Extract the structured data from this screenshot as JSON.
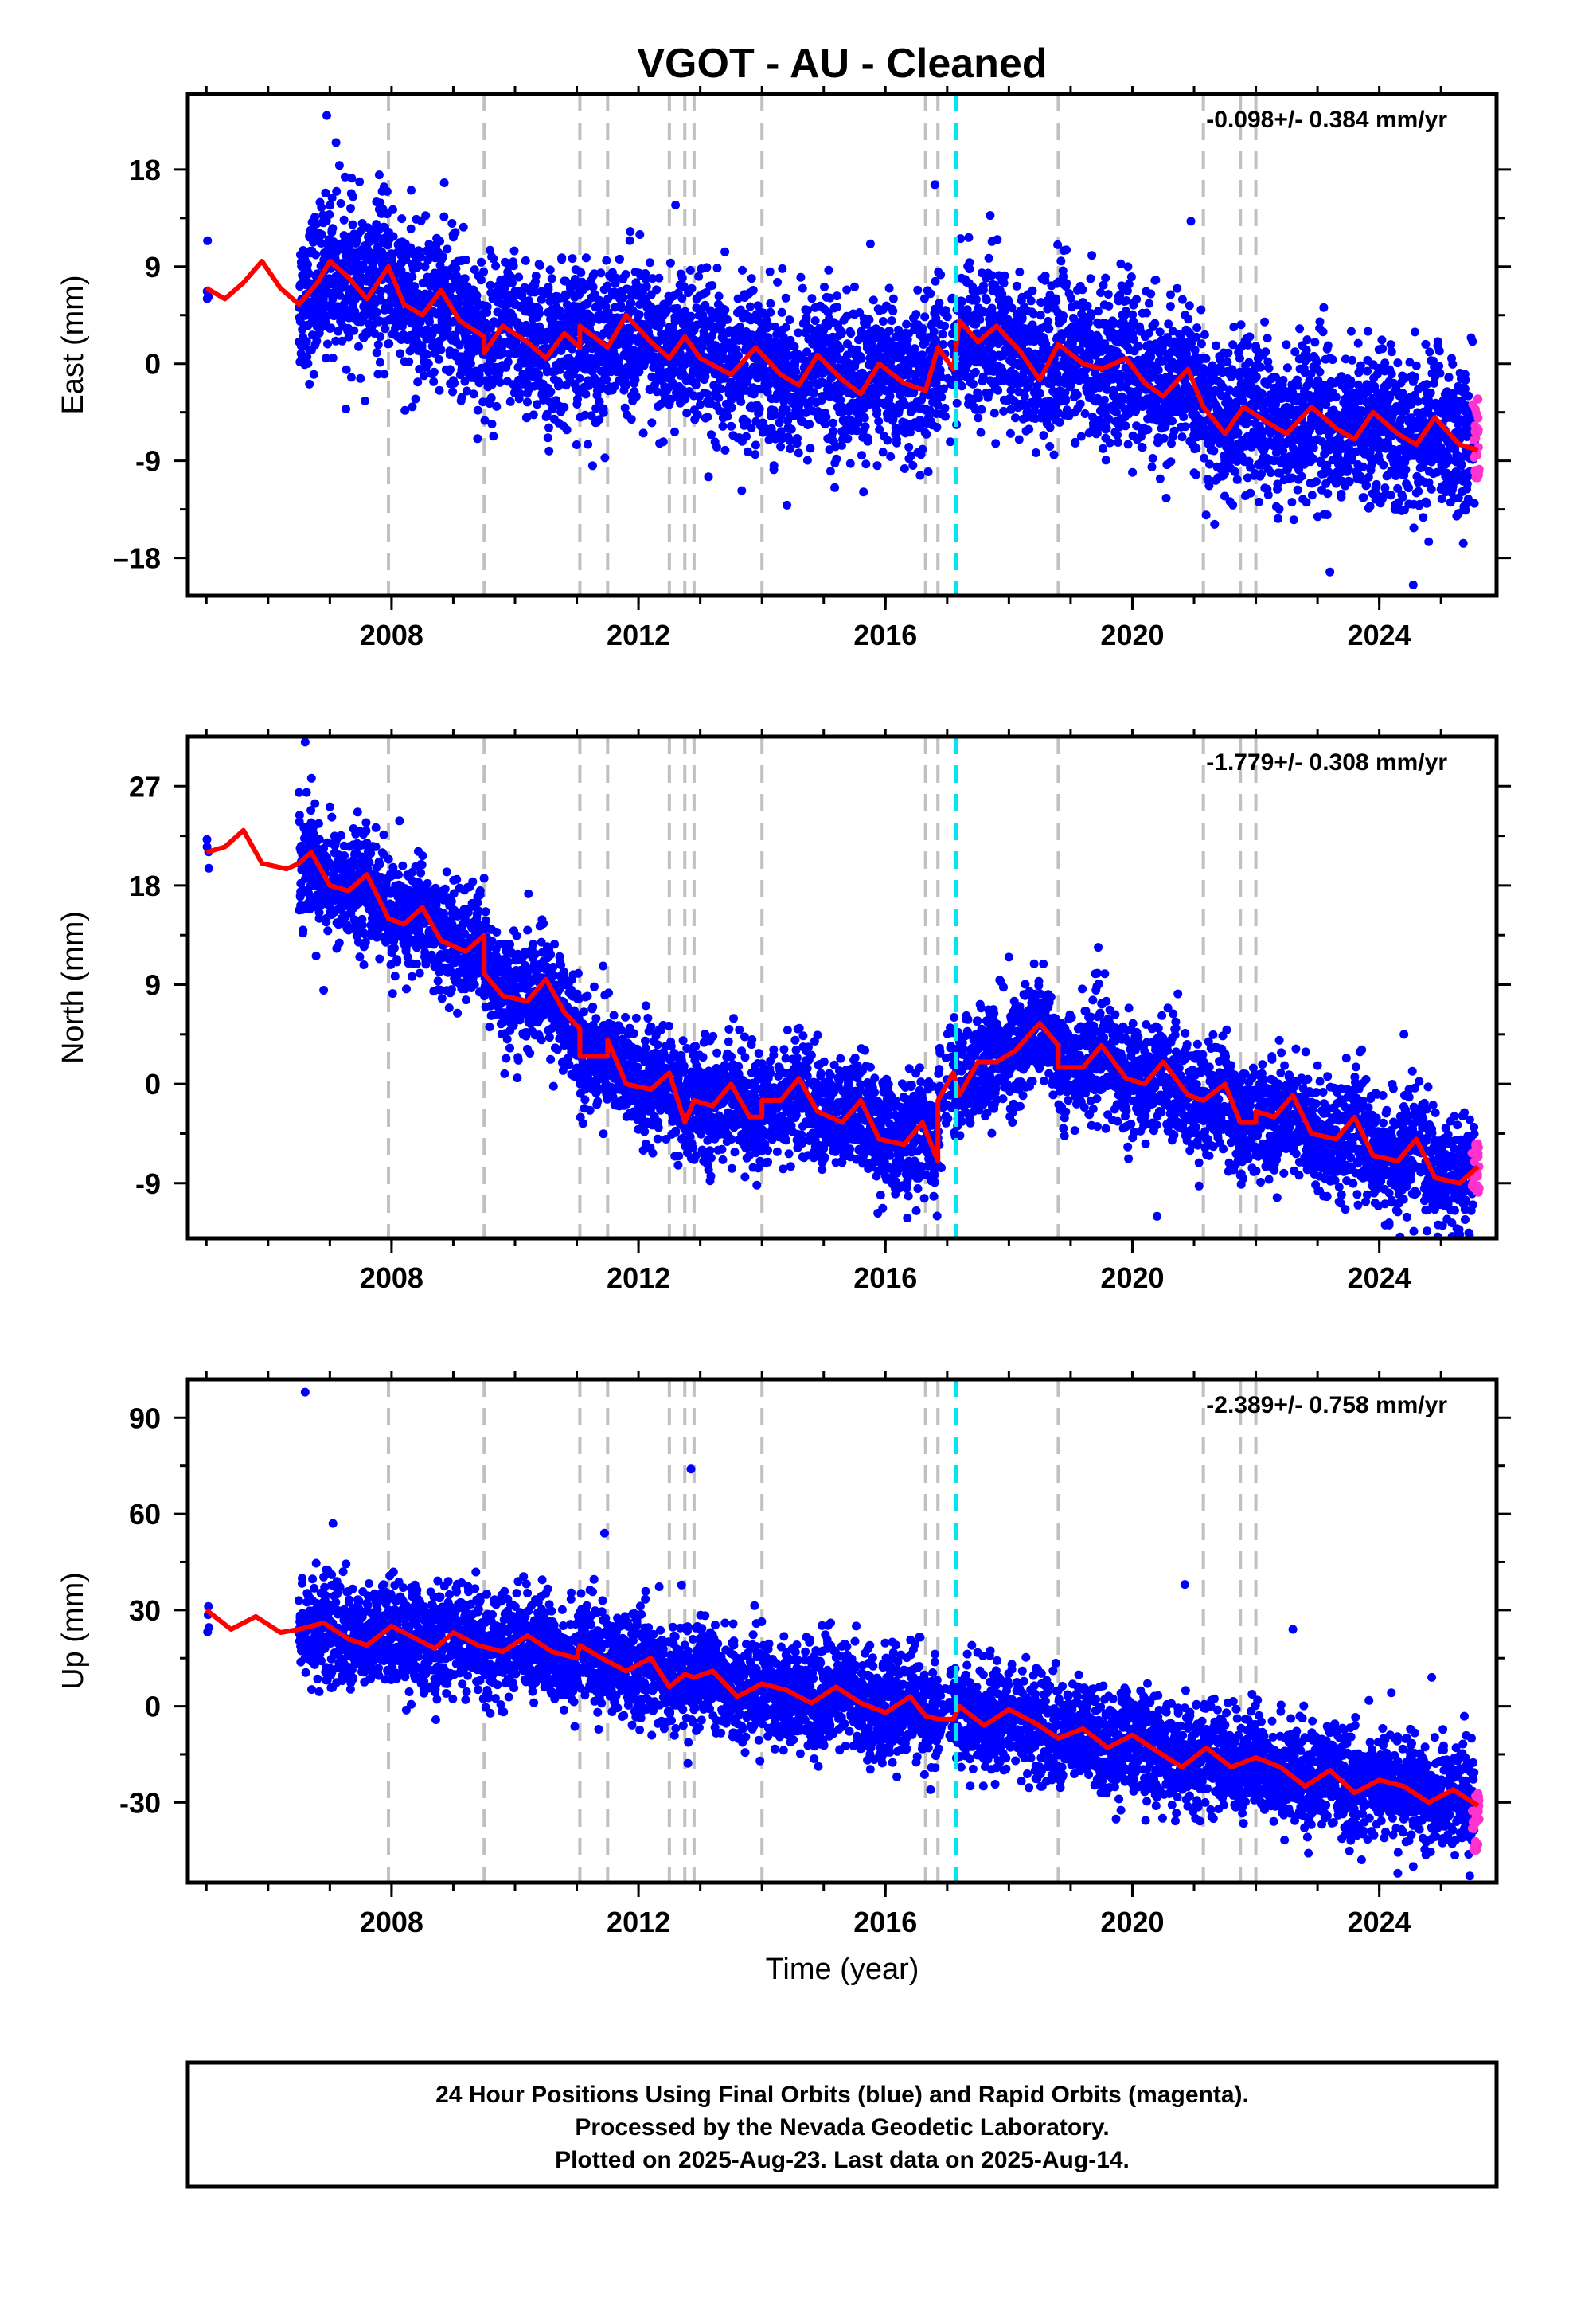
{
  "title": "VGOT  - AU - Cleaned",
  "xlabel": "Time (year)",
  "footer": [
    "24 Hour Positions Using Final Orbits (blue) and Rapid Orbits (magenta).",
    "Processed by the Nevada Geodetic Laboratory.",
    "Plotted on 2025-Aug-23. Last data on 2025-Aug-14."
  ],
  "colors": {
    "final": "#0000ff",
    "rapid": "#ff33cc",
    "model": "#ff0000",
    "steps": "#c0c0c0",
    "antenna": "#00e5ee"
  },
  "chart_data": [
    {
      "type": "scatter",
      "component": "East",
      "ylabel": "East (mm)",
      "rate_text": "-0.098+/- 0.384 mm/yr",
      "xlim": [
        2004.7,
        2025.9
      ],
      "ylim": [
        -21.5,
        25
      ],
      "x_ticks": [
        2008,
        2012,
        2016,
        2020,
        2024
      ],
      "y_ticks": [
        18,
        9,
        0,
        -9,
        -18
      ],
      "y_tick_labels": [
        "18",
        "9",
        "0",
        "-9",
        "–18"
      ],
      "step_epochs": [
        2007.95,
        2009.5,
        2011.05,
        2011.5,
        2012.5,
        2012.75,
        2012.9,
        2014.0,
        2016.65,
        2016.85,
        2018.8,
        2021.15,
        2021.75,
        2022.0
      ],
      "antenna_epoch": 2017.15,
      "series": [
        {
          "name": "Final Orbits (blue)",
          "values_trend": [
            [
              2005.0,
              7
            ],
            [
              2006.5,
              6
            ],
            [
              2007.5,
              8
            ],
            [
              2009.0,
              4
            ],
            [
              2010.5,
              1.5
            ],
            [
              2012.0,
              1
            ],
            [
              2014.0,
              -1
            ],
            [
              2016.0,
              -1.5
            ],
            [
              2017.1,
              -0.5
            ],
            [
              2017.2,
              2
            ],
            [
              2019.0,
              1
            ],
            [
              2020.5,
              -1
            ],
            [
              2021.2,
              -4.5
            ],
            [
              2023.0,
              -5
            ],
            [
              2025.6,
              -7
            ]
          ],
          "scatter_sd": 3.5,
          "data_start": 2006.5,
          "data_end": 2025.55
        },
        {
          "name": "Rapid Orbits (magenta)",
          "x_range": [
            2025.5,
            2025.62
          ],
          "y_range": [
            -11,
            -3
          ]
        }
      ],
      "outliers": [
        [
          2006.95,
          23
        ],
        [
          2007.1,
          20.5
        ],
        [
          2007.8,
          17.5
        ],
        [
          2012.6,
          14.7
        ],
        [
          2016.8,
          16.6
        ],
        [
          2023.2,
          -19.3
        ],
        [
          2024.55,
          -20.5
        ],
        [
          2024.8,
          -16.5
        ]
      ],
      "model": [
        [
          2005.0,
          7
        ],
        [
          2005.3,
          6
        ],
        [
          2005.6,
          7.5
        ],
        [
          2005.9,
          9.5
        ],
        [
          2006.2,
          7
        ],
        [
          2006.5,
          5.5
        ],
        [
          2006.8,
          7.5
        ],
        [
          2007.0,
          9.5
        ],
        [
          2007.3,
          8
        ],
        [
          2007.6,
          6
        ],
        [
          2007.95,
          9
        ],
        [
          2008.2,
          5.5
        ],
        [
          2008.5,
          4.5
        ],
        [
          2008.8,
          6.8
        ],
        [
          2009.1,
          4
        ],
        [
          2009.5,
          2.5
        ],
        [
          2009.5,
          1
        ],
        [
          2009.8,
          3.5
        ],
        [
          2010.2,
          2
        ],
        [
          2010.5,
          0.5
        ],
        [
          2010.8,
          2.8
        ],
        [
          2011.05,
          1.5
        ],
        [
          2011.05,
          3.5
        ],
        [
          2011.5,
          1.5
        ],
        [
          2011.8,
          4.5
        ],
        [
          2012.2,
          2
        ],
        [
          2012.5,
          0.5
        ],
        [
          2012.75,
          2.5
        ],
        [
          2013.0,
          0.5
        ],
        [
          2013.5,
          -1
        ],
        [
          2013.9,
          1.5
        ],
        [
          2014.3,
          -1
        ],
        [
          2014.6,
          -2
        ],
        [
          2014.9,
          0.8
        ],
        [
          2015.3,
          -1.5
        ],
        [
          2015.6,
          -2.8
        ],
        [
          2015.9,
          0
        ],
        [
          2016.3,
          -1.8
        ],
        [
          2016.65,
          -2.5
        ],
        [
          2016.85,
          1.5
        ],
        [
          2017.1,
          -0.5
        ],
        [
          2017.2,
          4
        ],
        [
          2017.5,
          2
        ],
        [
          2017.8,
          3.5
        ],
        [
          2018.2,
          1
        ],
        [
          2018.5,
          -1.5
        ],
        [
          2018.8,
          1.8
        ],
        [
          2019.2,
          0
        ],
        [
          2019.5,
          -0.5
        ],
        [
          2019.9,
          0.5
        ],
        [
          2020.2,
          -1.8
        ],
        [
          2020.5,
          -3
        ],
        [
          2020.9,
          -0.5
        ],
        [
          2021.15,
          -4
        ],
        [
          2021.5,
          -6.5
        ],
        [
          2021.8,
          -4
        ],
        [
          2022.2,
          -5.5
        ],
        [
          2022.5,
          -6.5
        ],
        [
          2022.9,
          -4
        ],
        [
          2023.3,
          -6
        ],
        [
          2023.6,
          -7
        ],
        [
          2023.9,
          -4.5
        ],
        [
          2024.3,
          -6.5
        ],
        [
          2024.6,
          -7.5
        ],
        [
          2024.9,
          -5
        ],
        [
          2025.3,
          -7.5
        ],
        [
          2025.6,
          -8
        ]
      ]
    },
    {
      "type": "scatter",
      "component": "North",
      "ylabel": "North (mm)",
      "rate_text": "-1.779+/- 0.308 mm/yr",
      "xlim": [
        2004.7,
        2025.9
      ],
      "ylim": [
        -14,
        31.5
      ],
      "x_ticks": [
        2008,
        2012,
        2016,
        2020,
        2024
      ],
      "y_ticks": [
        27,
        18,
        9,
        0,
        -9
      ],
      "y_tick_labels": [
        "27",
        "18",
        "9",
        "0",
        "-9"
      ],
      "step_epochs": [
        2007.95,
        2009.5,
        2011.05,
        2011.5,
        2012.5,
        2012.75,
        2012.9,
        2014.0,
        2016.65,
        2016.85,
        2018.8,
        2021.15,
        2021.75,
        2022.0
      ],
      "antenna_epoch": 2017.15,
      "series": [
        {
          "name": "Final Orbits (blue)",
          "values_trend": [
            [
              2005.0,
              21.5
            ],
            [
              2006.5,
              20.5
            ],
            [
              2008.0,
              16
            ],
            [
              2009.5,
              12
            ],
            [
              2011.0,
              4
            ],
            [
              2012.0,
              0
            ],
            [
              2013.0,
              -2
            ],
            [
              2014.0,
              -2.5
            ],
            [
              2015.5,
              -3
            ],
            [
              2016.8,
              -5
            ],
            [
              2017.1,
              -1
            ],
            [
              2017.3,
              2
            ],
            [
              2018.5,
              3.5
            ],
            [
              2019.5,
              2
            ],
            [
              2020.5,
              0
            ],
            [
              2021.2,
              -2.5
            ],
            [
              2022.5,
              -4.5
            ],
            [
              2024.0,
              -6.5
            ],
            [
              2025.6,
              -8
            ]
          ],
          "scatter_sd": 2.5,
          "data_start": 2006.5,
          "data_end": 2025.55
        },
        {
          "name": "Rapid Orbits (magenta)",
          "x_range": [
            2025.5,
            2025.62
          ],
          "y_range": [
            -10,
            -5
          ]
        }
      ],
      "outliers": [
        [
          2006.6,
          31
        ],
        [
          2006.9,
          8.5
        ],
        [
          2016.5,
          -11.5
        ],
        [
          2020.4,
          -12
        ],
        [
          2024.4,
          4.5
        ],
        [
          2025.45,
          -13.5
        ],
        [
          2018.0,
          11.5
        ],
        [
          2019.4,
          10
        ]
      ],
      "model": [
        [
          2005.0,
          21
        ],
        [
          2005.3,
          21.5
        ],
        [
          2005.6,
          23
        ],
        [
          2005.9,
          20
        ],
        [
          2006.3,
          19.5
        ],
        [
          2006.5,
          20
        ],
        [
          2006.7,
          21
        ],
        [
          2007.0,
          18
        ],
        [
          2007.3,
          17.5
        ],
        [
          2007.6,
          19
        ],
        [
          2007.95,
          15
        ],
        [
          2008.2,
          14.5
        ],
        [
          2008.5,
          16
        ],
        [
          2008.8,
          13
        ],
        [
          2009.2,
          12
        ],
        [
          2009.5,
          13.5
        ],
        [
          2009.5,
          10
        ],
        [
          2009.8,
          8
        ],
        [
          2010.2,
          7.5
        ],
        [
          2010.5,
          9.5
        ],
        [
          2010.8,
          6.5
        ],
        [
          2011.05,
          5
        ],
        [
          2011.05,
          2.5
        ],
        [
          2011.5,
          2.5
        ],
        [
          2011.5,
          4
        ],
        [
          2011.8,
          0
        ],
        [
          2012.2,
          -0.5
        ],
        [
          2012.5,
          1
        ],
        [
          2012.75,
          -3.5
        ],
        [
          2012.9,
          -1.5
        ],
        [
          2013.2,
          -2
        ],
        [
          2013.5,
          0
        ],
        [
          2013.8,
          -3
        ],
        [
          2014.0,
          -3
        ],
        [
          2014.0,
          -1.5
        ],
        [
          2014.3,
          -1.5
        ],
        [
          2014.6,
          0.5
        ],
        [
          2014.9,
          -2.5
        ],
        [
          2015.3,
          -3.5
        ],
        [
          2015.6,
          -1.5
        ],
        [
          2015.9,
          -5
        ],
        [
          2016.3,
          -5.5
        ],
        [
          2016.6,
          -3.5
        ],
        [
          2016.85,
          -7
        ],
        [
          2016.85,
          -1.5
        ],
        [
          2017.1,
          1
        ],
        [
          2017.2,
          -1
        ],
        [
          2017.5,
          2
        ],
        [
          2017.8,
          2
        ],
        [
          2018.1,
          3
        ],
        [
          2018.5,
          5.5
        ],
        [
          2018.8,
          3.5
        ],
        [
          2018.8,
          1.5
        ],
        [
          2019.2,
          1.5
        ],
        [
          2019.5,
          3.5
        ],
        [
          2019.9,
          0.5
        ],
        [
          2020.2,
          0
        ],
        [
          2020.5,
          2
        ],
        [
          2020.9,
          -1
        ],
        [
          2021.15,
          -1.5
        ],
        [
          2021.5,
          0
        ],
        [
          2021.75,
          -3.5
        ],
        [
          2022.0,
          -3.5
        ],
        [
          2022.0,
          -2.5
        ],
        [
          2022.3,
          -3
        ],
        [
          2022.6,
          -1
        ],
        [
          2022.9,
          -4.5
        ],
        [
          2023.3,
          -5
        ],
        [
          2023.6,
          -3
        ],
        [
          2023.9,
          -6.5
        ],
        [
          2024.3,
          -7
        ],
        [
          2024.6,
          -5
        ],
        [
          2024.9,
          -8.5
        ],
        [
          2025.3,
          -9
        ],
        [
          2025.6,
          -7.5
        ]
      ]
    },
    {
      "type": "scatter",
      "component": "Up",
      "ylabel": "Up (mm)",
      "rate_text": "-2.389+/- 0.758 mm/yr",
      "xlim": [
        2004.7,
        2025.9
      ],
      "ylim": [
        -55,
        102
      ],
      "x_ticks": [
        2008,
        2012,
        2016,
        2020,
        2024
      ],
      "y_ticks": [
        90,
        60,
        30,
        0,
        -30
      ],
      "y_tick_labels": [
        "90",
        "60",
        "30",
        "0",
        "-30"
      ],
      "step_epochs": [
        2007.95,
        2009.5,
        2011.05,
        2011.5,
        2012.5,
        2012.75,
        2012.9,
        2014.0,
        2016.65,
        2016.85,
        2018.8,
        2021.15,
        2021.75,
        2022.0
      ],
      "antenna_epoch": 2017.15,
      "series": [
        {
          "name": "Final Orbits (blue)",
          "values_trend": [
            [
              2005.0,
              28
            ],
            [
              2006.5,
              24
            ],
            [
              2008.0,
              22
            ],
            [
              2010.0,
              19
            ],
            [
              2012.0,
              12
            ],
            [
              2013.0,
              8
            ],
            [
              2015.0,
              4
            ],
            [
              2017.0,
              -2
            ],
            [
              2018.8,
              -8
            ],
            [
              2020.5,
              -15
            ],
            [
              2022.0,
              -19
            ],
            [
              2024.0,
              -25
            ],
            [
              2025.6,
              -30
            ]
          ],
          "scatter_sd": 8,
          "data_start": 2006.5,
          "data_end": 2025.55
        },
        {
          "name": "Rapid Orbits (magenta)",
          "x_range": [
            2025.5,
            2025.62
          ],
          "y_range": [
            -45,
            -27
          ]
        }
      ],
      "outliers": [
        [
          2006.6,
          98
        ],
        [
          2012.85,
          74
        ],
        [
          2011.45,
          54
        ],
        [
          2007.05,
          57
        ],
        [
          2020.85,
          38
        ],
        [
          2022.6,
          24
        ],
        [
          2024.85,
          9
        ],
        [
          2024.55,
          -50
        ]
      ],
      "model": [
        [
          2005.0,
          30
        ],
        [
          2005.4,
          24
        ],
        [
          2005.8,
          28
        ],
        [
          2006.2,
          23
        ],
        [
          2006.5,
          24
        ],
        [
          2006.9,
          26
        ],
        [
          2007.3,
          21
        ],
        [
          2007.6,
          19
        ],
        [
          2008.0,
          25
        ],
        [
          2008.4,
          21
        ],
        [
          2008.7,
          18
        ],
        [
          2009.0,
          23
        ],
        [
          2009.4,
          19
        ],
        [
          2009.8,
          17
        ],
        [
          2010.2,
          22
        ],
        [
          2010.6,
          17
        ],
        [
          2011.0,
          15
        ],
        [
          2011.05,
          19
        ],
        [
          2011.4,
          15
        ],
        [
          2011.8,
          11
        ],
        [
          2012.2,
          15
        ],
        [
          2012.5,
          6
        ],
        [
          2012.75,
          10
        ],
        [
          2012.9,
          9
        ],
        [
          2013.2,
          11
        ],
        [
          2013.6,
          3
        ],
        [
          2014.0,
          7
        ],
        [
          2014.4,
          5
        ],
        [
          2014.8,
          1
        ],
        [
          2015.2,
          6
        ],
        [
          2015.6,
          1
        ],
        [
          2016.0,
          -2
        ],
        [
          2016.4,
          3
        ],
        [
          2016.65,
          -3
        ],
        [
          2016.85,
          -4
        ],
        [
          2017.1,
          -4
        ],
        [
          2017.2,
          0
        ],
        [
          2017.6,
          -6
        ],
        [
          2018.0,
          -1
        ],
        [
          2018.4,
          -5
        ],
        [
          2018.8,
          -10
        ],
        [
          2019.2,
          -7
        ],
        [
          2019.6,
          -13
        ],
        [
          2020.0,
          -9
        ],
        [
          2020.4,
          -14
        ],
        [
          2020.8,
          -19
        ],
        [
          2021.2,
          -13
        ],
        [
          2021.6,
          -19
        ],
        [
          2022.0,
          -16
        ],
        [
          2022.4,
          -19
        ],
        [
          2022.8,
          -25
        ],
        [
          2023.2,
          -20
        ],
        [
          2023.6,
          -27
        ],
        [
          2024.0,
          -23
        ],
        [
          2024.4,
          -25
        ],
        [
          2024.8,
          -30
        ],
        [
          2025.2,
          -26
        ],
        [
          2025.6,
          -31
        ]
      ]
    }
  ]
}
